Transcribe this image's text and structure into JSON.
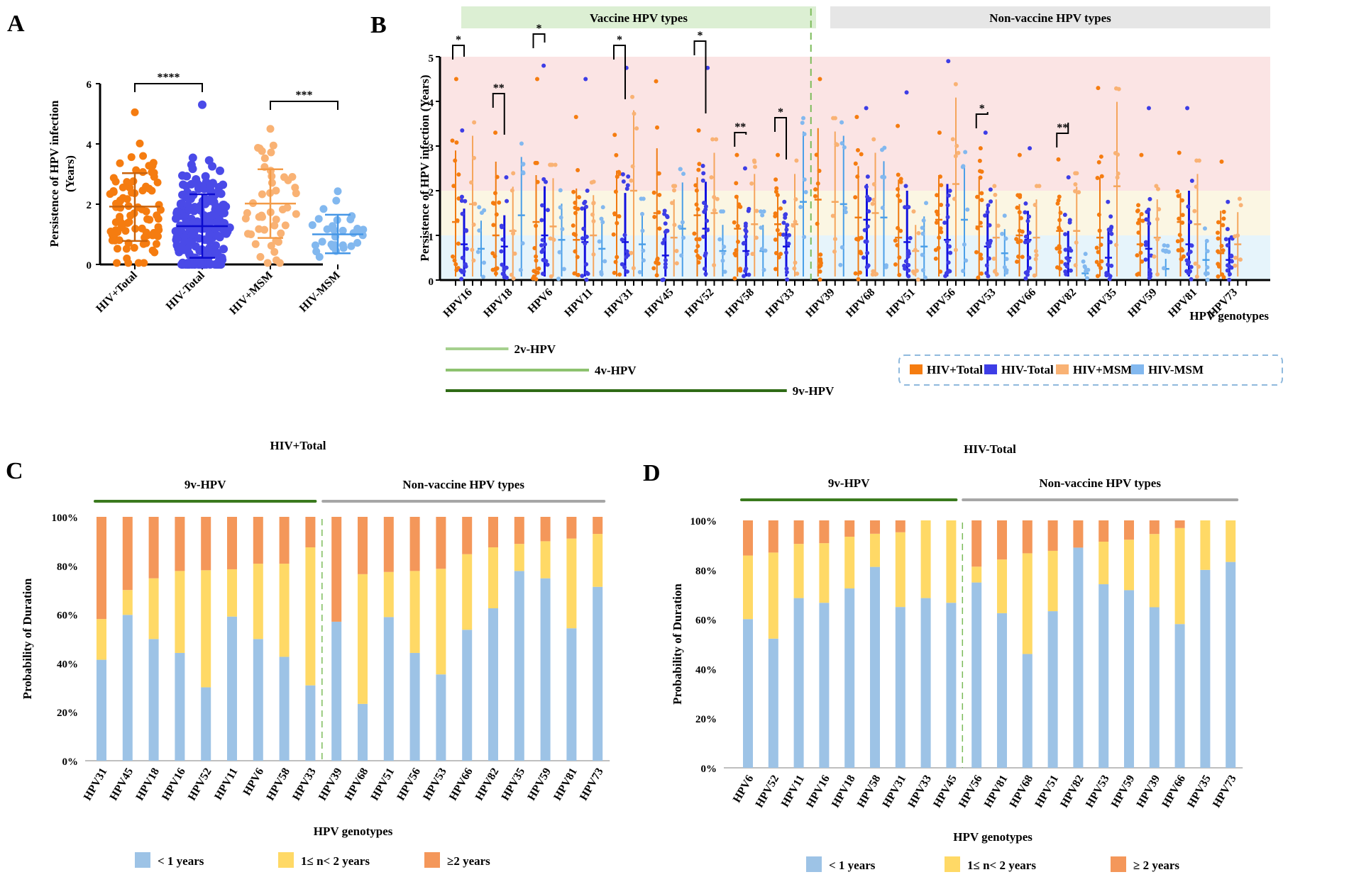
{
  "figure": {
    "panels": [
      "A",
      "B",
      "C",
      "D"
    ]
  },
  "chart_data": [
    {
      "id": "A",
      "type": "scatter",
      "title": "",
      "xlabel": "",
      "ylabel": "Persistence of HPV infection (Years)",
      "ylabel_lines": [
        "Persistence of HPV infection",
        "(Years)"
      ],
      "ylim": [
        0,
        6
      ],
      "yticks": [
        "0",
        "2",
        "4",
        "6"
      ],
      "categories": [
        "HIV+Total",
        "HIV-Total",
        "HIV+MSM",
        "HIV-MSM"
      ],
      "colors": [
        "#f57c10",
        "#4a4ae8",
        "#f9b274",
        "#82b8ef"
      ],
      "summary": [
        {
          "group": "HIV+Total",
          "mean": 1.92,
          "sd_low": 0.78,
          "sd_high": 3.03,
          "max": 5.05,
          "min": 0.05
        },
        {
          "group": "HIV-Total",
          "mean": 1.27,
          "sd_low": 0.22,
          "sd_high": 2.33,
          "max": 5.3,
          "min": 0.0
        },
        {
          "group": "HIV+MSM",
          "mean": 2.02,
          "sd_low": 0.88,
          "sd_high": 3.16,
          "max": 4.5,
          "min": 0.05
        },
        {
          "group": "HIV-MSM",
          "mean": 1.0,
          "sd_low": 0.37,
          "sd_high": 1.65,
          "max": 2.43,
          "min": 0.25
        }
      ],
      "significance": [
        {
          "pair": [
            "HIV+Total",
            "HIV-Total"
          ],
          "label": "****"
        },
        {
          "pair": [
            "HIV+MSM",
            "HIV-MSM"
          ],
          "label": "***"
        }
      ]
    },
    {
      "id": "B",
      "type": "scatter",
      "ylabel": "Persistence of HPV infection (Years)",
      "xlabel": "HPV genotypes",
      "ylim": [
        0,
        5
      ],
      "yticks": [
        "0",
        "1",
        "2",
        "3",
        "4",
        "5"
      ],
      "bands": [
        {
          "from": 0,
          "to": 1,
          "color": "#e6f4fb"
        },
        {
          "from": 1,
          "to": 2,
          "color": "#fbf6e3"
        },
        {
          "from": 2,
          "to": 5,
          "color": "#fbe4e4"
        }
      ],
      "group_headers": [
        {
          "label": "Vaccine HPV types",
          "color": "#dcefd3"
        },
        {
          "label": "Non-vaccine HPV types",
          "color": "#e6e6e6"
        }
      ],
      "categories": [
        "HPV16",
        "HPV18",
        "HPV6",
        "HPV11",
        "HPV31",
        "HPV45",
        "HPV52",
        "HPV58",
        "HPV33",
        "HPV39",
        "HPV68",
        "HPV51",
        "HPV56",
        "HPV53",
        "HPV66",
        "HPV82",
        "HPV35",
        "HPV59",
        "HPV81",
        "HPV73"
      ],
      "vaccine_count": 9,
      "legend": [
        {
          "label": "HIV+Total",
          "color": "#f57c10"
        },
        {
          "label": "HIV-Total",
          "color": "#3d3de6"
        },
        {
          "label": "HIV+MSM",
          "color": "#f9b274"
        },
        {
          "label": "HIV-MSM",
          "color": "#82b8ef"
        }
      ],
      "legend_position": "bottom-right",
      "series": [
        {
          "name": "HIV+Total",
          "means": [
            1.3,
            1.0,
            1.3,
            0.9,
            1.45,
            1.5,
            1.45,
            1.15,
            1.25,
            1.8,
            1.4,
            0.95,
            1.35,
            1.2,
            1.0,
            1.1,
            0.95,
            0.8,
            1.3,
            0.6
          ],
          "upper": [
            2.9,
            2.65,
            2.35,
            2.05,
            2.45,
            2.95,
            2.3,
            1.9,
            1.9,
            3.4,
            2.55,
            2.25,
            2.35,
            2.3,
            1.7,
            1.65,
            2.3,
            1.5,
            1.95,
            1.55
          ],
          "max": [
            4.5,
            3.3,
            4.5,
            3.65,
            3.25,
            4.45,
            3.35,
            2.8,
            2.8,
            4.5,
            3.65,
            3.45,
            3.3,
            2.95,
            2.8,
            2.7,
            4.3,
            2.8,
            2.85,
            2.65
          ]
        },
        {
          "name": "HIV-Total",
          "means": [
            0.8,
            0.75,
            1.0,
            0.85,
            0.85,
            0.55,
            1.15,
            0.65,
            0.75,
            0,
            1.35,
            0.85,
            0.9,
            0.75,
            0.9,
            0.5,
            0.5,
            0.7,
            0.8,
            0.45
          ],
          "upper": [
            1.6,
            1.45,
            2.1,
            1.65,
            1.95,
            1.1,
            2.2,
            1.25,
            1.25,
            0,
            2.15,
            2.0,
            2.15,
            1.65,
            1.55,
            1.1,
            1.15,
            1.55,
            2.0,
            0.95
          ],
          "max": [
            3.35,
            2.3,
            4.8,
            4.5,
            4.75,
            1.55,
            4.75,
            2.5,
            1.75,
            0,
            3.85,
            4.2,
            4.9,
            3.3,
            2.95,
            2.3,
            1.75,
            3.85,
            3.85,
            1.75
          ]
        },
        {
          "name": "HIV+MSM",
          "means": [
            1.7,
            1.1,
            1.2,
            1.0,
            2.0,
            0.95,
            1.5,
            1.25,
            1.25,
            1.75,
            1.5,
            0.65,
            2.15,
            0.95,
            0.95,
            1.1,
            2.1,
            0.95,
            1.25,
            0.8
          ]
        },
        {
          "name": "HIV-MSM",
          "means": [
            0.7,
            1.45,
            0.9,
            0.7,
            0.8,
            1.15,
            0.65,
            0.65,
            1.75,
            1.7,
            1.4,
            0.75,
            1.35,
            0.6,
            0,
            0.15,
            0,
            0.25,
            0.45,
            0
          ]
        }
      ],
      "significance": [
        {
          "genotype": "HPV16",
          "label": "*"
        },
        {
          "genotype": "HPV18",
          "label": "**"
        },
        {
          "genotype": "HPV6",
          "label": "*"
        },
        {
          "genotype": "HPV31",
          "label": "*"
        },
        {
          "genotype": "HPV52",
          "label": "*"
        },
        {
          "genotype": "HPV58",
          "label": "**"
        },
        {
          "genotype": "HPV33",
          "label": "*"
        },
        {
          "genotype": "HPV53",
          "label": "*"
        },
        {
          "genotype": "HPV82",
          "label": "**"
        }
      ],
      "vaccine_coverage": [
        {
          "label": "2v-HPV",
          "span": 2,
          "color": "#a5d08e"
        },
        {
          "label": "4v-HPV",
          "span": 4,
          "color": "#8dc26f"
        },
        {
          "label": "9v-HPV",
          "span": 9,
          "color": "#2f6b16"
        }
      ]
    },
    {
      "id": "C",
      "type": "bar",
      "stacked": true,
      "title": "HIV+Total",
      "xlabel": "HPV genotypes",
      "ylabel": "Probability of Duration",
      "ylim": [
        0,
        100
      ],
      "yticks": [
        "0%",
        "20%",
        "40%",
        "60%",
        "80%",
        "100%"
      ],
      "group_headers": [
        {
          "label": "9v-HPV",
          "count": 9,
          "color": "#3a7a1e"
        },
        {
          "label": "Non-vaccine HPV types",
          "count": 11,
          "color": "#7f7f7f"
        }
      ],
      "categories": [
        "HPV31",
        "HPV45",
        "HPV18",
        "HPV16",
        "HPV52",
        "HPV11",
        "HPV6",
        "HPV58",
        "HPV33",
        "HPV39",
        "HPV68",
        "HPV51",
        "HPV56",
        "HPV53",
        "HPV66",
        "HPV82",
        "HPV35",
        "HPV59",
        "HPV81",
        "HPV73"
      ],
      "highlighted_categories": [
        "HPV11",
        "HPV6",
        "HPV81"
      ],
      "series": [
        {
          "name": "< 1 years",
          "color": "#9dc3e6",
          "values": [
            41.4,
            59.8,
            49.9,
            44.2,
            30.1,
            59.1,
            49.9,
            42.6,
            30.9,
            57.0,
            23.3,
            58.9,
            44.2,
            35.4,
            53.7,
            62.5,
            77.8,
            74.8,
            54.3,
            71.3
          ]
        },
        {
          "name": "1≤ n< 2 years",
          "color": "#ffd966",
          "values": [
            16.7,
            10.2,
            24.9,
            33.6,
            48.0,
            19.4,
            30.9,
            38.2,
            56.6,
            0.0,
            53.2,
            18.5,
            33.6,
            43.3,
            31.0,
            25.0,
            11.1,
            15.2,
            36.8,
            21.7
          ]
        },
        {
          "name": "≥2 years",
          "color": "#f4975a",
          "values": [
            41.9,
            30.0,
            25.2,
            22.2,
            21.9,
            21.5,
            19.2,
            19.2,
            12.5,
            43.0,
            23.5,
            22.6,
            22.2,
            21.3,
            15.3,
            12.5,
            11.1,
            10.0,
            8.9,
            7.0
          ]
        }
      ],
      "legend_position": "bottom"
    },
    {
      "id": "D",
      "type": "bar",
      "stacked": true,
      "title": "HIV-Total",
      "xlabel": "HPV genotypes",
      "ylabel": "Probability of Duration",
      "ylim": [
        0,
        100
      ],
      "yticks": [
        "0%",
        "20%",
        "40%",
        "60%",
        "80%",
        "100%"
      ],
      "group_headers": [
        {
          "label": "9v-HPV",
          "count": 9,
          "color": "#3a7a1e"
        },
        {
          "label": "Non-vaccine HPV types",
          "count": 11,
          "color": "#7f7f7f"
        }
      ],
      "categories": [
        "HPV6",
        "HPV52",
        "HPV11",
        "HPV16",
        "HPV18",
        "HPV58",
        "HPV31",
        "HPV33",
        "HPV45",
        "HPV56",
        "HPV81",
        "HPV68",
        "HPV51",
        "HPV82",
        "HPV53",
        "HPV59",
        "HPV39",
        "HPV66",
        "HPV35",
        "HPV73"
      ],
      "highlighted_categories": [
        "HPV6",
        "HPV11",
        "HPV81"
      ],
      "series": [
        {
          "name": "< 1 years",
          "color": "#9dc3e6",
          "values": [
            60.1,
            52.2,
            68.6,
            66.7,
            72.5,
            81.2,
            65.0,
            68.6,
            66.7,
            74.9,
            62.5,
            46.0,
            63.3,
            89.0,
            74.2,
            71.8,
            64.9,
            58.1,
            80.0,
            83.2
          ]
        },
        {
          "name": "1≤ n< 2 years",
          "color": "#ffd966",
          "values": [
            25.7,
            34.8,
            21.9,
            24.1,
            20.9,
            13.4,
            30.2,
            31.4,
            33.3,
            6.4,
            21.7,
            40.7,
            24.4,
            0.0,
            17.2,
            20.4,
            29.6,
            38.8,
            20.0,
            16.8
          ]
        },
        {
          "name": "≥ 2 years",
          "color": "#f4975a",
          "values": [
            14.2,
            13.0,
            9.5,
            9.2,
            6.6,
            5.4,
            4.8,
            0.0,
            0.0,
            18.7,
            15.8,
            13.3,
            12.3,
            11.0,
            8.6,
            7.8,
            5.5,
            3.1,
            0.0,
            0.0
          ]
        }
      ],
      "legend_position": "bottom"
    }
  ]
}
